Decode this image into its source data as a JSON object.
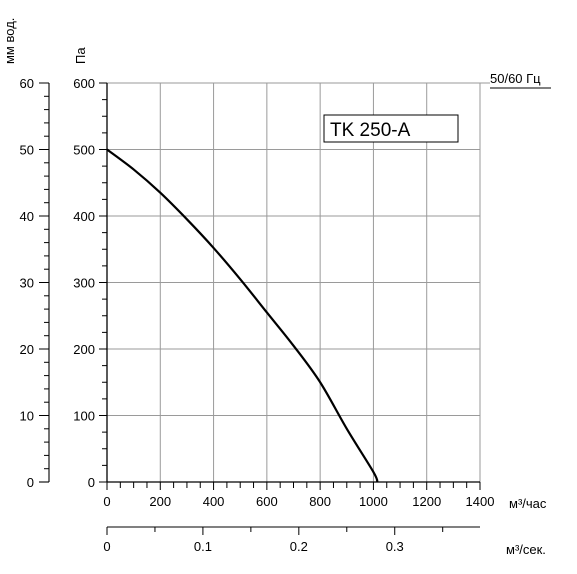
{
  "chart_data": {
    "type": "line",
    "title": "TK 250-A",
    "frequency_label": "50/60 Гц",
    "x_primary": {
      "unit": "м³/час",
      "range": [
        0,
        1400
      ],
      "ticks": [
        0,
        200,
        400,
        600,
        800,
        1000,
        1200,
        1400
      ],
      "tick_labels": [
        "0",
        "200",
        "400",
        "600",
        "800",
        "1000",
        "1200",
        "1400"
      ]
    },
    "x_secondary": {
      "unit": "м³/сек.",
      "range": [
        0,
        0.3889
      ],
      "ticks": [
        0,
        0.1,
        0.2,
        0.3
      ],
      "tick_labels": [
        "0",
        "0.1",
        "0.2",
        "0.3"
      ]
    },
    "y_primary": {
      "unit": "Па",
      "range": [
        0,
        600
      ],
      "ticks": [
        0,
        100,
        200,
        300,
        400,
        500,
        600
      ],
      "tick_labels": [
        "0",
        "100",
        "200",
        "300",
        "400",
        "500",
        "600"
      ]
    },
    "y_secondary": {
      "unit": "мм вод.",
      "range": [
        0,
        60
      ],
      "ticks": [
        0,
        10,
        20,
        30,
        40,
        50,
        60
      ],
      "tick_labels": [
        "0",
        "10",
        "20",
        "30",
        "40",
        "50",
        "60"
      ]
    },
    "grid": true,
    "series": [
      {
        "x": [
          0,
          100,
          200,
          300,
          400,
          500,
          600,
          700,
          800,
          900,
          1000,
          1015
        ],
        "y": [
          500,
          470,
          435,
          395,
          352,
          305,
          255,
          205,
          150,
          80,
          15,
          0
        ]
      }
    ]
  }
}
